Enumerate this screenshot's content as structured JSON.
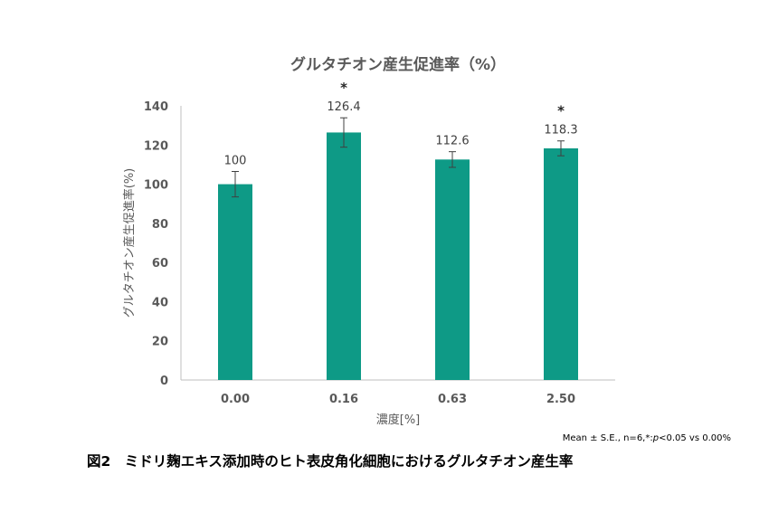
{
  "chart_data": {
    "type": "bar",
    "title": "グルタチオン産生促進率（%）",
    "xlabel": "濃度[%]",
    "ylabel": "グルタチオン産生促進率(%)",
    "categories": [
      "0.00",
      "0.16",
      "0.63",
      "2.50"
    ],
    "values": [
      100,
      126.4,
      112.6,
      118.3
    ],
    "errors": [
      6.5,
      7.5,
      4.0,
      3.8
    ],
    "data_labels": [
      "100",
      "126.4",
      "112.6",
      "118.3"
    ],
    "significance": [
      "",
      "*",
      "",
      "*"
    ],
    "ylim": [
      0,
      140
    ],
    "yticks": [
      0,
      20,
      40,
      60,
      80,
      100,
      120,
      140
    ],
    "ytick_labels": [
      "0",
      "20",
      "40",
      "60",
      "80",
      "100",
      "120",
      "140"
    ],
    "bar_color": "#0E9A86",
    "grid": false,
    "legend": false
  },
  "note": "Mean ± S.E., n=6,*:p<0.05 vs 0.00%",
  "note_parts": {
    "prefix": "Mean ± S.E., n=6,*:",
    "p": "p",
    "suffix": "<0.05 vs 0.00%"
  },
  "caption": "図2　ミドリ麹エキス添加時のヒト表皮角化細胞におけるグルタチオン産生率"
}
